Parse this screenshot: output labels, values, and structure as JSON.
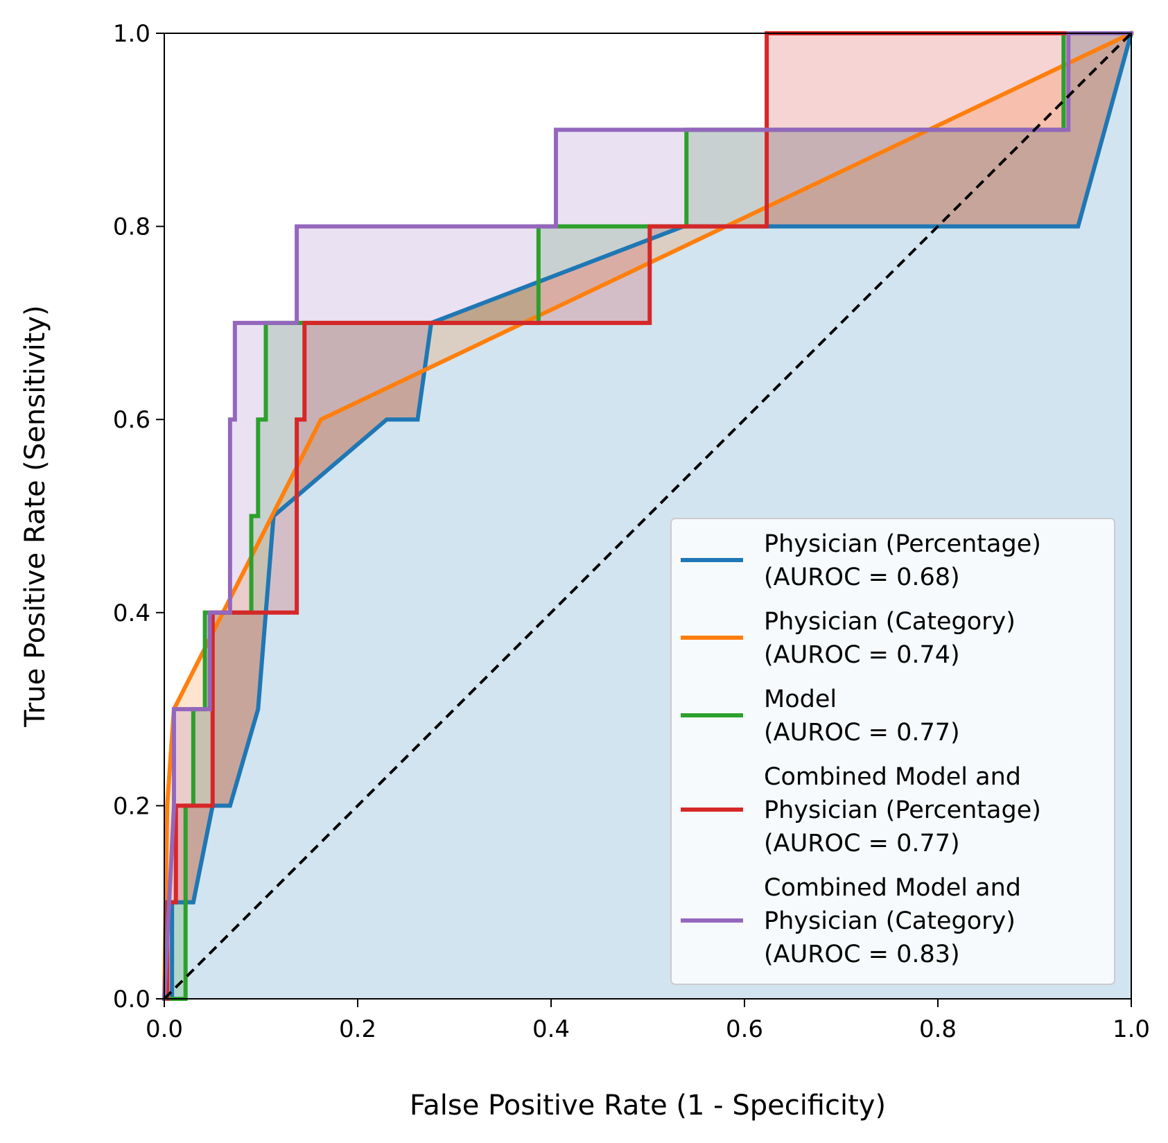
{
  "chart_data": {
    "type": "line",
    "title": "",
    "xlabel": "False Positive Rate (1 - Specificity)",
    "ylabel": "True Positive Rate (Sensitivity)",
    "xlim": [
      0.0,
      1.0
    ],
    "ylim": [
      0.0,
      1.0
    ],
    "xticks": [
      "0.0",
      "0.2",
      "0.4",
      "0.6",
      "0.8",
      "1.0"
    ],
    "yticks": [
      "0.0",
      "0.2",
      "0.4",
      "0.6",
      "0.8",
      "1.0"
    ],
    "grid": false,
    "legend_position": "lower-right",
    "reference_line": {
      "x": [
        0,
        1
      ],
      "y": [
        0,
        1
      ],
      "style": "dashed",
      "color": "#000000"
    },
    "series": [
      {
        "name": "Physician (Percentage)",
        "legend_lines": [
          "Physician (Percentage)",
          "(AUROC = 0.68)"
        ],
        "color": "#1f77b4",
        "fill_under": true,
        "x": [
          0.0,
          0.008,
          0.008,
          0.03,
          0.05,
          0.068,
          0.097,
          0.113,
          0.23,
          0.262,
          0.276,
          0.537,
          0.945,
          1.0
        ],
        "y": [
          0.0,
          0.0,
          0.1,
          0.1,
          0.2,
          0.2,
          0.3,
          0.5,
          0.6,
          0.6,
          0.7,
          0.8,
          0.8,
          1.0
        ]
      },
      {
        "name": "Physician (Category)",
        "legend_lines": [
          "Physician (Category)",
          "(AUROC = 0.74)"
        ],
        "color": "#ff7f0e",
        "fill_under": false,
        "x": [
          0.0,
          0.003,
          0.01,
          0.162,
          1.0
        ],
        "y": [
          0.0,
          0.2,
          0.3,
          0.6,
          1.0
        ]
      },
      {
        "name": "Model",
        "legend_lines": [
          "Model",
          "(AUROC = 0.77)"
        ],
        "color": "#2ca02c",
        "fill_under": false,
        "x": [
          0.0,
          0.022,
          0.022,
          0.03,
          0.03,
          0.042,
          0.042,
          0.09,
          0.09,
          0.097,
          0.097,
          0.105,
          0.105,
          0.387,
          0.387,
          0.54,
          0.54,
          0.93,
          0.93,
          1.0
        ],
        "y": [
          0.0,
          0.0,
          0.2,
          0.2,
          0.3,
          0.3,
          0.4,
          0.4,
          0.5,
          0.5,
          0.6,
          0.6,
          0.7,
          0.7,
          0.8,
          0.8,
          0.9,
          0.9,
          1.0,
          1.0
        ]
      },
      {
        "name": "Combined Model and Physician (Percentage)",
        "legend_lines": [
          "Combined Model and",
          "Physician (Percentage)",
          "(AUROC = 0.77)"
        ],
        "color": "#d62728",
        "fill_under": false,
        "x": [
          0.0,
          0.003,
          0.003,
          0.012,
          0.012,
          0.05,
          0.05,
          0.137,
          0.137,
          0.145,
          0.145,
          0.502,
          0.502,
          0.623,
          0.623,
          1.0
        ],
        "y": [
          0.0,
          0.0,
          0.1,
          0.1,
          0.2,
          0.2,
          0.4,
          0.4,
          0.6,
          0.6,
          0.7,
          0.7,
          0.8,
          0.8,
          1.0,
          1.0
        ]
      },
      {
        "name": "Combined Model and Physician (Category)",
        "legend_lines": [
          "Combined Model and",
          "Physician (Category)",
          "(AUROC = 0.83)"
        ],
        "color": "#9467bd",
        "fill_under": false,
        "x": [
          0.0,
          0.01,
          0.01,
          0.047,
          0.047,
          0.068,
          0.068,
          0.073,
          0.073,
          0.137,
          0.137,
          0.405,
          0.405,
          0.935,
          0.935,
          1.0
        ],
        "y": [
          0.0,
          0.2,
          0.3,
          0.3,
          0.4,
          0.4,
          0.6,
          0.6,
          0.7,
          0.7,
          0.8,
          0.8,
          0.9,
          0.9,
          1.0,
          1.0
        ]
      }
    ]
  }
}
